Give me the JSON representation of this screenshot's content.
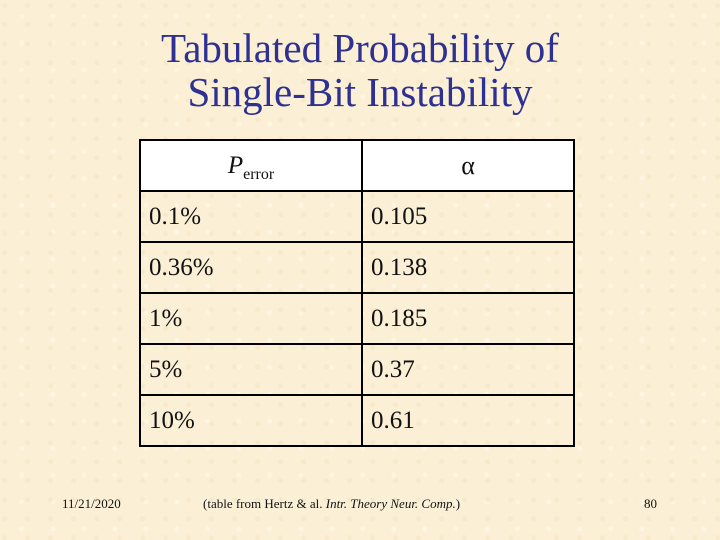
{
  "slide": {
    "title_line1": "Tabulated Probability of",
    "title_line2": "Single-Bit Instability",
    "title_color": "#2e3191"
  },
  "table": {
    "headers": {
      "col1_symbol": "P",
      "col1_subscript": "error",
      "col2_symbol": "α"
    },
    "rows": [
      {
        "p_error": "0.1%",
        "alpha": "0.105"
      },
      {
        "p_error": "0.36%",
        "alpha": "0.138"
      },
      {
        "p_error": "1%",
        "alpha": "0.185"
      },
      {
        "p_error": "5%",
        "alpha": "0.37"
      },
      {
        "p_error": "10%",
        "alpha": "0.61"
      }
    ]
  },
  "footer": {
    "date": "11/21/2020",
    "cite_prefix": "(table from Hertz & al. ",
    "cite_italic": "Intr. Theory Neur. Comp.",
    "cite_suffix": ")",
    "page_number": "80"
  }
}
